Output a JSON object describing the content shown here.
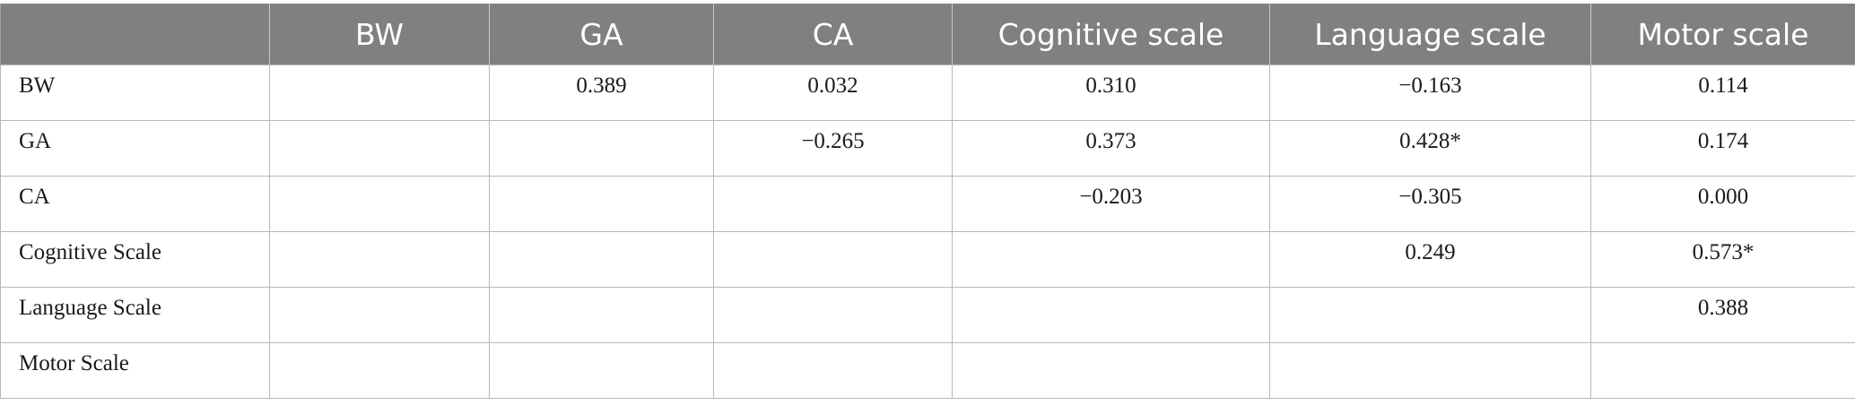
{
  "table": {
    "columns": [
      "",
      "BW",
      "GA",
      "CA",
      "Cognitive scale",
      "Language scale",
      "Motor scale"
    ],
    "rows": [
      {
        "label": "BW",
        "cells": [
          "",
          "0.389",
          "0.032",
          "0.310",
          "−0.163",
          "0.114"
        ]
      },
      {
        "label": "GA",
        "cells": [
          "",
          "",
          "−0.265",
          "0.373",
          "0.428*",
          "0.174"
        ]
      },
      {
        "label": "CA",
        "cells": [
          "",
          "",
          "",
          "−0.203",
          "−0.305",
          "0.000"
        ]
      },
      {
        "label": "Cognitive Scale",
        "cells": [
          "",
          "",
          "",
          "",
          "0.249",
          "0.573*"
        ]
      },
      {
        "label": "Language Scale",
        "cells": [
          "",
          "",
          "",
          "",
          "",
          "0.388"
        ]
      },
      {
        "label": "Motor Scale",
        "cells": [
          "",
          "",
          "",
          "",
          "",
          ""
        ]
      }
    ]
  },
  "colors": {
    "header_background": "#7f8180",
    "header_text": "#ffffff",
    "grid_lines": "#b8b8b8"
  }
}
